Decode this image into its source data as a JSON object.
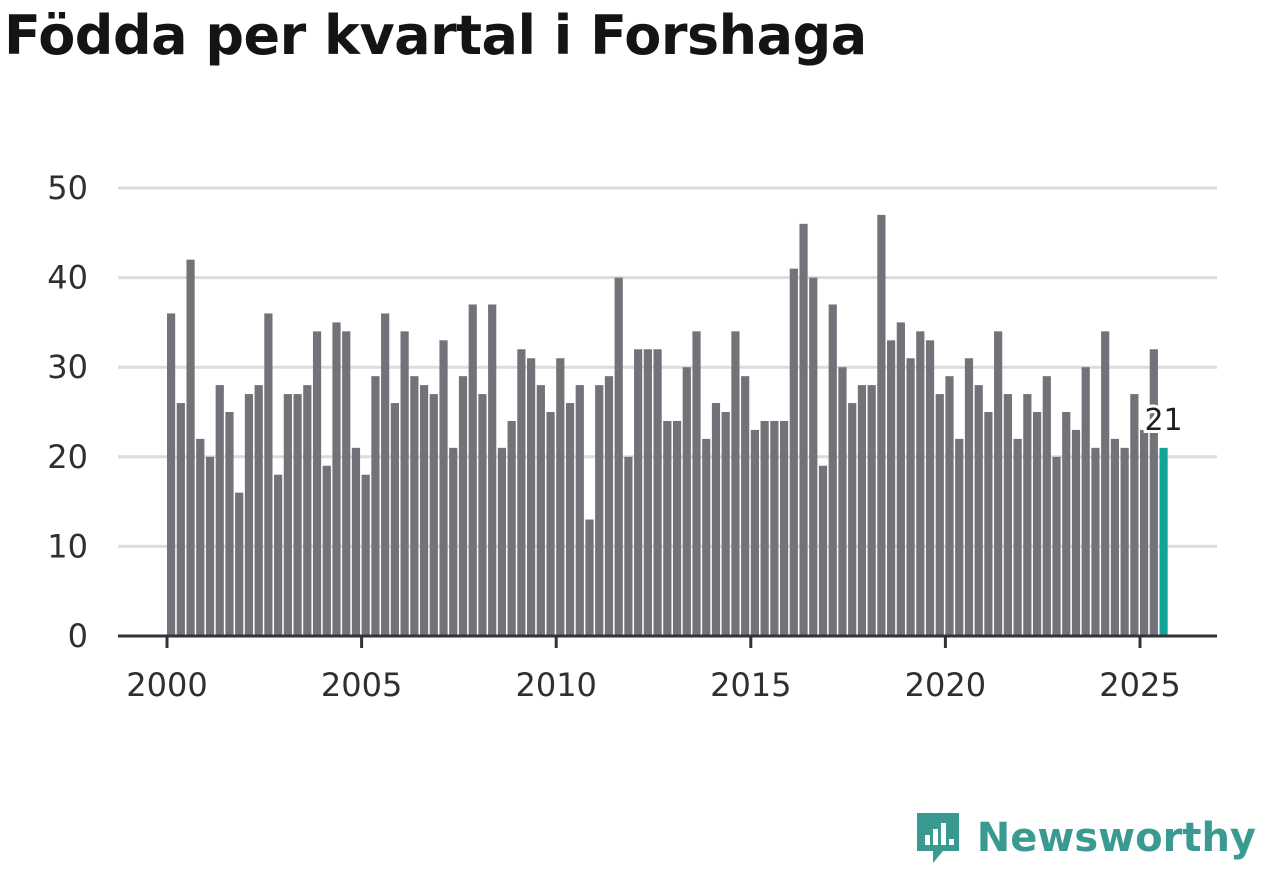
{
  "title": "Födda per kvartal i Forshaga",
  "brand": {
    "name": "Newsworthy",
    "color": "#3a9a91",
    "icon": "newsworthy-logo-icon"
  },
  "colors": {
    "bar": "#737278",
    "highlight": "#13a39b",
    "grid": "#dcdcdc",
    "axis": "#333333"
  },
  "chart_data": {
    "type": "bar",
    "title": "Födda per kvartal i Forshaga",
    "xlabel": "",
    "ylabel": "",
    "ylim": [
      0,
      50
    ],
    "yticks": [
      0,
      10,
      20,
      30,
      40,
      50
    ],
    "xticks": [
      "2000",
      "2005",
      "2010",
      "2015",
      "2020",
      "2025"
    ],
    "start_year": 2000,
    "periods_per_year": 4,
    "grid": true,
    "highlight_label": "21",
    "values": [
      36,
      26,
      42,
      22,
      20,
      28,
      25,
      16,
      27,
      28,
      36,
      18,
      27,
      27,
      28,
      34,
      19,
      35,
      34,
      21,
      18,
      29,
      36,
      26,
      34,
      29,
      28,
      27,
      33,
      21,
      29,
      37,
      27,
      37,
      21,
      24,
      32,
      31,
      28,
      25,
      31,
      26,
      28,
      13,
      28,
      29,
      40,
      20,
      32,
      32,
      32,
      24,
      24,
      30,
      34,
      22,
      26,
      25,
      34,
      29,
      23,
      24,
      24,
      24,
      41,
      46,
      40,
      19,
      37,
      30,
      26,
      28,
      28,
      47,
      33,
      35,
      31,
      34,
      33,
      27,
      29,
      22,
      31,
      28,
      25,
      34,
      27,
      22,
      27,
      25,
      29,
      20,
      25,
      23,
      30,
      21,
      34,
      22,
      21,
      27,
      23,
      32,
      21
    ]
  }
}
